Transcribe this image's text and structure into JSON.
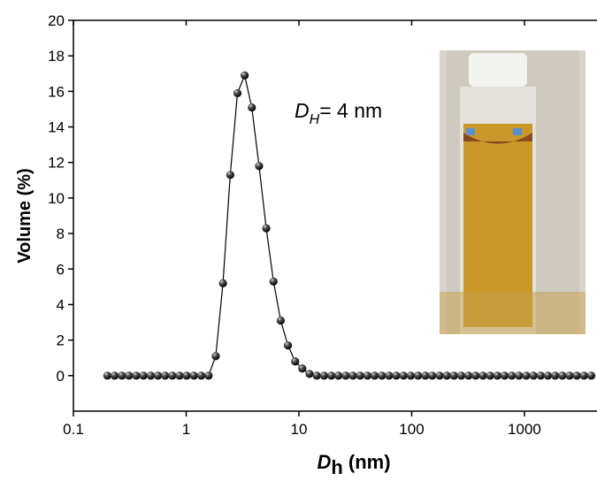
{
  "chart_data": {
    "type": "line",
    "x_label": {
      "main": "D",
      "sub": "h",
      "rest": " (nm)"
    },
    "y_label": "Volume (%)",
    "annotation": {
      "main": "D",
      "sub": "H",
      "rest": "= 4 nm"
    },
    "log_x": true,
    "xlim": [
      0.1,
      4400
    ],
    "xticks": [
      0.1,
      1,
      10,
      100,
      1000
    ],
    "ylim": [
      -2,
      20
    ],
    "yticks": [
      0,
      2,
      4,
      6,
      8,
      10,
      12,
      14,
      16,
      18,
      20
    ],
    "x": [
      0.2,
      0.232,
      0.269,
      0.311,
      0.361,
      0.418,
      0.485,
      0.562,
      0.651,
      0.754,
      0.874,
      1.01,
      1.17,
      1.36,
      1.58,
      1.83,
      2.12,
      2.46,
      2.85,
      3.3,
      3.82,
      4.43,
      5.13,
      5.95,
      6.89,
      7.99,
      9.26,
      10.7,
      12.4,
      14.4,
      16.7,
      19.4,
      22.4,
      26.0,
      30.1,
      34.9,
      40.5,
      46.9,
      54.4,
      63.0,
      73.0,
      84.6,
      98.1,
      114,
      132,
      152,
      177,
      205,
      237,
      275,
      319,
      369,
      428,
      496,
      575,
      666,
      772,
      895,
      1037,
      1202,
      1393,
      1614,
      1871,
      2168,
      2513,
      2912,
      3375,
      3911
    ],
    "series": [
      {
        "color": "#000000",
        "values": [
          0,
          0,
          0,
          0,
          0,
          0,
          0,
          0,
          0,
          0,
          0,
          0,
          0,
          0,
          0,
          1.1,
          5.2,
          11.3,
          15.9,
          16.9,
          15.1,
          11.8,
          8.3,
          5.3,
          3.1,
          1.7,
          0.8,
          0.4,
          0.1,
          0,
          0,
          0,
          0,
          0,
          0,
          0,
          0,
          0,
          0,
          0,
          0,
          0,
          0,
          0,
          0,
          0,
          0,
          0,
          0,
          0,
          0,
          0,
          0,
          0,
          0,
          0,
          0,
          0,
          0,
          0,
          0,
          0,
          0,
          0,
          0,
          0,
          0,
          0
        ]
      }
    ]
  }
}
